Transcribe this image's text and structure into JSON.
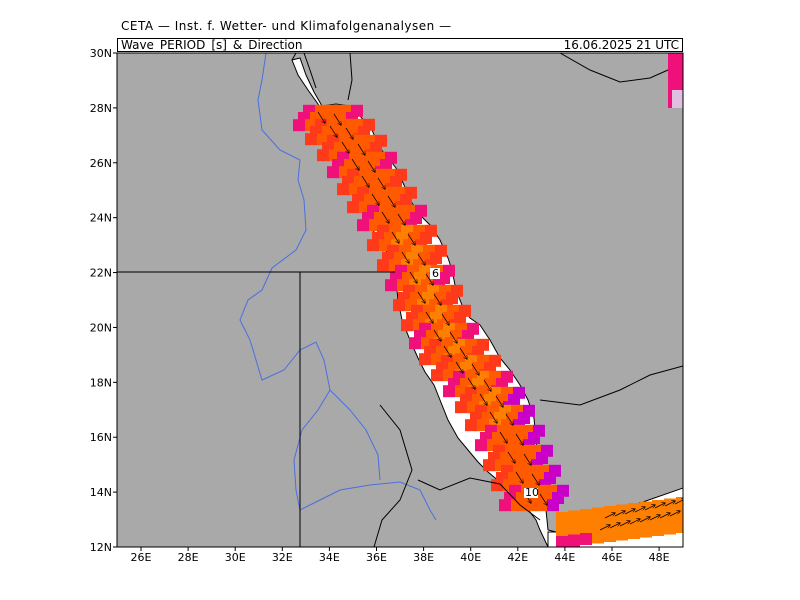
{
  "header": {
    "institute": "CETA — Inst. f. Wetter- und Klimafolgenanalysen —",
    "variable_title": "Wave_PERIOD_[s]_&_Direction",
    "valid_time": "16.06.2025 21 UTC"
  },
  "map": {
    "region": "Red Sea",
    "lat_labels": [
      "30N",
      "28N",
      "26N",
      "24N",
      "22N",
      "20N",
      "18N",
      "16N",
      "14N",
      "12N"
    ],
    "lon_labels": [
      "26E",
      "28E",
      "30E",
      "32E",
      "34E",
      "36E",
      "38E",
      "40E",
      "42E",
      "44E",
      "46E",
      "48E"
    ],
    "contour_labels": [
      "6",
      "10"
    ],
    "colors": {
      "land": "#a9a9a9",
      "coast": "#ffffff",
      "period_orange": "#ff7f00",
      "period_orange_red": "#ff5a00",
      "period_red": "#ff3a1a",
      "period_magenta": "#f0107a",
      "period_purple": "#c800c8",
      "river": "#4a6fe0",
      "border": "#000000"
    },
    "grid": "dotted"
  }
}
